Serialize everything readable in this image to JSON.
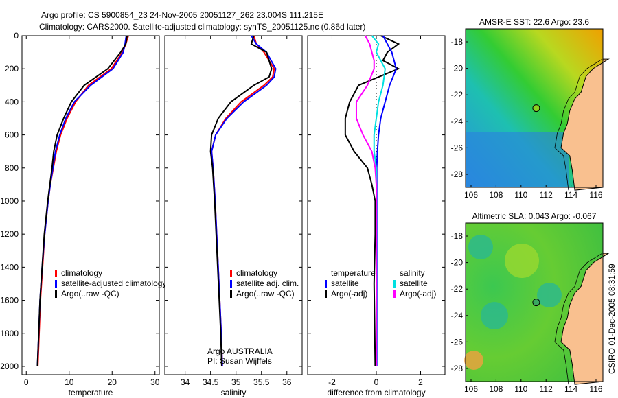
{
  "title_line1": "Argo profile: CS 5900854_23 24-Nov-2005 20051127_262 23.004S 111.215E",
  "title_line2": "Climatology: CARS2000. Satellite-adjusted climatology: synTS_20051125.nc (0.86d later)",
  "colors": {
    "climatology": "#ff0000",
    "satellite": "#0000ff",
    "argo": "#000000",
    "sal_satellite": "#00e0e0",
    "sal_argo": "#ff00ff"
  },
  "chart_data": [
    {
      "type": "line",
      "xlabel": "temperature",
      "xlim": [
        -1,
        31
      ],
      "ylim": [
        2050,
        0
      ],
      "xticks": [
        0,
        10,
        20,
        30
      ],
      "yticks": [
        0,
        200,
        400,
        600,
        800,
        1000,
        1200,
        1400,
        1600,
        1800,
        2000
      ],
      "legend": [
        "climatology",
        "satellite-adjusted climatology",
        "Argo(..raw -QC)"
      ],
      "depth": [
        0,
        50,
        100,
        200,
        300,
        400,
        500,
        600,
        700,
        800,
        900,
        1000,
        1200,
        1400,
        1600,
        1800,
        2000
      ],
      "series": [
        {
          "name": "climatology",
          "color": "#ff0000",
          "values": [
            23.8,
            23.2,
            22.4,
            19.8,
            14.5,
            11.5,
            9.5,
            8.0,
            7.0,
            6.3,
            5.6,
            5.1,
            4.3,
            3.8,
            3.3,
            3.0,
            2.7
          ]
        },
        {
          "name": "satellite-adjusted climatology",
          "color": "#0000ff",
          "values": [
            23.3,
            23.0,
            22.6,
            20.2,
            15.0,
            11.2,
            9.2,
            7.8,
            6.8,
            6.2,
            5.6,
            5.1,
            4.3,
            3.7,
            3.2,
            2.9,
            2.6
          ]
        },
        {
          "name": "Argo(..raw -QC)",
          "color": "#000000",
          "values": [
            23.5,
            23.2,
            22.0,
            19.0,
            13.5,
            10.5,
            8.7,
            7.2,
            6.4,
            6.0,
            5.5,
            5.0,
            4.2,
            3.7,
            3.2,
            2.9,
            2.6
          ]
        }
      ]
    },
    {
      "type": "line",
      "xlabel": "salinity",
      "xlim": [
        33.6,
        36.3
      ],
      "ylim": [
        2050,
        0
      ],
      "xticks": [
        34,
        34.5,
        35,
        35.5,
        36
      ],
      "legend": [
        "climatology",
        "satellite adj. clim.",
        "Argo(..raw -QC)"
      ],
      "annotation": [
        "Argo AUSTRALIA",
        "PI: Susan Wijffels"
      ],
      "depth": [
        0,
        50,
        100,
        200,
        250,
        300,
        400,
        500,
        600,
        700,
        800,
        900,
        1000,
        1200,
        1400,
        1600,
        1800,
        2000
      ],
      "series": [
        {
          "name": "climatology",
          "color": "#ff0000",
          "values": [
            35.35,
            35.4,
            35.55,
            35.75,
            35.72,
            35.55,
            35.1,
            34.8,
            34.6,
            34.52,
            34.55,
            34.57,
            34.59,
            34.62,
            34.65,
            34.68,
            34.71,
            34.73
          ]
        },
        {
          "name": "satellite adj. clim.",
          "color": "#0000ff",
          "values": [
            35.3,
            35.4,
            35.6,
            35.78,
            35.75,
            35.6,
            35.15,
            34.82,
            34.6,
            34.52,
            34.55,
            34.57,
            34.59,
            34.62,
            34.65,
            34.68,
            34.71,
            34.73
          ]
        },
        {
          "name": "Argo(..raw -QC)",
          "color": "#000000",
          "values": [
            35.35,
            35.3,
            35.6,
            35.7,
            35.65,
            35.35,
            34.9,
            34.65,
            34.52,
            34.5,
            34.54,
            34.56,
            34.58,
            34.61,
            34.64,
            34.67,
            34.7,
            34.72
          ]
        }
      ]
    },
    {
      "type": "line",
      "xlabel": "difference from climatology",
      "xlim": [
        -3.1,
        3.1
      ],
      "ylim": [
        2050,
        0
      ],
      "xticks": [
        -2,
        0,
        2
      ],
      "legend": {
        "temperature": [
          "temperature",
          "satellite",
          "Argo(-adj)"
        ],
        "salinity": [
          "salinity",
          "satellite",
          "Argo(-adj)"
        ]
      },
      "depth": [
        0,
        50,
        100,
        150,
        200,
        300,
        400,
        500,
        600,
        700,
        800,
        900,
        1000,
        1200,
        1500,
        2000
      ],
      "series": [
        {
          "name": "temperature Argo(-adj)",
          "color": "#000000",
          "values": [
            0.2,
            1.0,
            0.5,
            0.3,
            1.0,
            -0.8,
            -1.2,
            -1.4,
            -1.4,
            -1.0,
            -0.4,
            -0.2,
            -0.05,
            -0.05,
            -0.1,
            -0.05
          ]
        },
        {
          "name": "temperature satellite",
          "color": "#0000ff",
          "values": [
            0.3,
            0.5,
            0.7,
            0.8,
            0.9,
            0.6,
            0.4,
            0.2,
            0.1,
            0.05,
            0.02,
            0.02,
            0.02,
            0.02,
            0.02,
            0.02
          ]
        },
        {
          "name": "salinity satellite",
          "color": "#00e0e0",
          "values": [
            -0.2,
            0.1,
            0.0,
            0.2,
            0.4,
            0.3,
            0.1,
            0.0,
            -0.1,
            -0.1,
            0.0,
            0.0,
            0.0,
            0.0,
            0.0,
            0.0
          ]
        },
        {
          "name": "salinity Argo(-adj)",
          "color": "#ff00ff",
          "values": [
            -0.5,
            -0.3,
            -0.2,
            -0.1,
            -0.1,
            -0.4,
            -0.9,
            -0.9,
            -0.6,
            -0.2,
            -0.05,
            0.0,
            0.0,
            0.0,
            0.0,
            0.0
          ]
        }
      ]
    }
  ],
  "maps": [
    {
      "title": "AMSR-E SST: 22.6 Argo: 23.6",
      "xticks": [
        106,
        108,
        110,
        112,
        114,
        116
      ],
      "yticks": [
        -18,
        -20,
        -22,
        -24,
        -26,
        -28
      ]
    },
    {
      "title": "Altimetric SLA: 0.043 Argo: -0.067",
      "xticks": [
        106,
        108,
        110,
        112,
        114,
        116
      ],
      "yticks": [
        -18,
        -20,
        -22,
        -24,
        -26,
        -28
      ]
    }
  ],
  "footer": "CSIRO 01-Dec-2005 08:31:59"
}
